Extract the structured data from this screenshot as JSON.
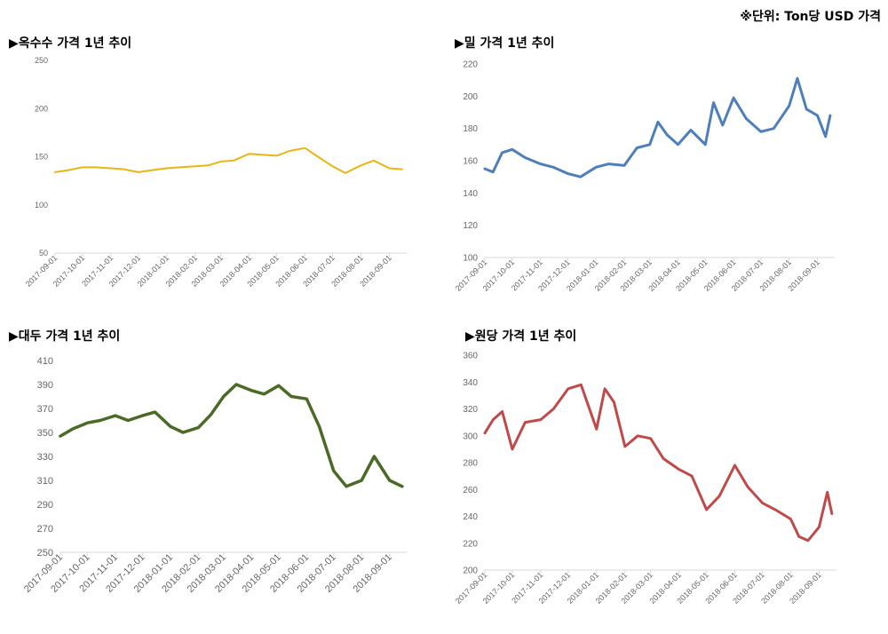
{
  "unit_note": "※단위: Ton당 USD 가격",
  "chart_data": [
    {
      "type": "line",
      "title": "▶옥수수 가격 1년 추이",
      "color": "#e8b612",
      "ylim": [
        50,
        250
      ],
      "yticks": [
        "50",
        "100",
        "150",
        "200",
        "250"
      ],
      "xticks": [
        "2017-09-01",
        "2017-10-01",
        "2017-11-01",
        "2017-12-01",
        "2018-01-01",
        "2018-02-01",
        "2018-03-01",
        "2018-04-01",
        "2018-05-01",
        "2018-06-01",
        "2018-07-01",
        "2018-08-01",
        "2018-09-01"
      ],
      "series": [
        {
          "x": [
            "2017-09-01",
            "2017-09-15",
            "2017-10-01",
            "2017-10-15",
            "2017-11-01",
            "2017-11-15",
            "2017-12-01",
            "2017-12-15",
            "2018-01-01",
            "2018-01-15",
            "2018-02-01",
            "2018-02-15",
            "2018-03-01",
            "2018-03-15",
            "2018-04-01",
            "2018-04-15",
            "2018-05-01",
            "2018-05-15",
            "2018-06-01",
            "2018-06-15",
            "2018-07-01",
            "2018-07-15",
            "2018-08-01",
            "2018-08-15",
            "2018-09-01",
            "2018-09-15"
          ],
          "values": [
            134,
            136,
            139,
            139,
            138,
            137,
            134,
            136,
            138,
            139,
            140,
            141,
            145,
            146,
            153,
            152,
            151,
            156,
            159,
            150,
            140,
            133,
            141,
            146,
            138,
            137
          ]
        }
      ]
    },
    {
      "type": "line",
      "title": "▶밀 가격 1년 추이",
      "color": "#4e7fba",
      "ylim": [
        100,
        220
      ],
      "yticks": [
        "100",
        "120",
        "140",
        "160",
        "180",
        "200",
        "220"
      ],
      "xticks": [
        "2017-09-01",
        "2017-10-01",
        "2017-11-01",
        "2017-12-01",
        "2018-01-01",
        "2018-02-01",
        "2018-03-01",
        "2018-04-01",
        "2018-05-01",
        "2018-06-01",
        "2018-07-01",
        "2018-08-01",
        "2018-09-01"
      ],
      "series": [
        {
          "x": [
            "2017-09-01",
            "2017-09-10",
            "2017-09-20",
            "2017-10-01",
            "2017-10-15",
            "2017-11-01",
            "2017-11-15",
            "2017-12-01",
            "2017-12-15",
            "2018-01-01",
            "2018-01-15",
            "2018-02-01",
            "2018-02-15",
            "2018-03-01",
            "2018-03-10",
            "2018-03-20",
            "2018-04-01",
            "2018-04-15",
            "2018-05-01",
            "2018-05-10",
            "2018-05-20",
            "2018-06-01",
            "2018-06-15",
            "2018-07-01",
            "2018-07-15",
            "2018-08-01",
            "2018-08-10",
            "2018-08-20",
            "2018-09-01",
            "2018-09-10",
            "2018-09-15"
          ],
          "values": [
            155,
            153,
            165,
            167,
            162,
            158,
            156,
            152,
            150,
            156,
            158,
            157,
            168,
            170,
            184,
            176,
            170,
            179,
            170,
            196,
            182,
            199,
            186,
            178,
            180,
            194,
            211,
            192,
            188,
            175,
            188
          ]
        }
      ]
    },
    {
      "type": "line",
      "title": "▶대두 가격 1년 추이",
      "color": "#4b6a26",
      "ylim": [
        250,
        410
      ],
      "yticks": [
        "250",
        "270",
        "290",
        "310",
        "330",
        "350",
        "370",
        "390",
        "410"
      ],
      "xticks": [
        "2017-09-01",
        "2017-10-01",
        "2017-11-01",
        "2017-12-01",
        "2018-01-01",
        "2018-02-01",
        "2018-03-01",
        "2018-04-01",
        "2018-05-01",
        "2018-06-01",
        "2018-07-01",
        "2018-08-01",
        "2018-09-01"
      ],
      "series": [
        {
          "x": [
            "2017-09-01",
            "2017-09-15",
            "2017-10-01",
            "2017-10-15",
            "2017-11-01",
            "2017-11-15",
            "2017-12-01",
            "2017-12-15",
            "2018-01-01",
            "2018-01-15",
            "2018-02-01",
            "2018-02-15",
            "2018-03-01",
            "2018-03-15",
            "2018-04-01",
            "2018-04-15",
            "2018-05-01",
            "2018-05-15",
            "2018-06-01",
            "2018-06-15",
            "2018-07-01",
            "2018-07-15",
            "2018-08-01",
            "2018-08-15",
            "2018-09-01",
            "2018-09-15"
          ],
          "values": [
            347,
            353,
            358,
            360,
            364,
            360,
            364,
            367,
            355,
            350,
            354,
            365,
            380,
            390,
            385,
            382,
            389,
            380,
            378,
            355,
            318,
            305,
            310,
            330,
            310,
            305
          ]
        }
      ]
    },
    {
      "type": "line",
      "title": "▶원당 가격 1년 추이",
      "color": "#c04a4a",
      "ylim": [
        200,
        360
      ],
      "yticks": [
        "200",
        "220",
        "240",
        "260",
        "280",
        "300",
        "320",
        "340",
        "360"
      ],
      "xticks": [
        "2017-09-01",
        "2017-10-01",
        "2017-11-01",
        "2017-12-01",
        "2018-01-01",
        "2018-02-01",
        "2018-03-01",
        "2018-04-01",
        "2018-05-01",
        "2018-06-01",
        "2018-07-01",
        "2018-08-01",
        "2018-09-01"
      ],
      "series": [
        {
          "x": [
            "2017-09-01",
            "2017-09-10",
            "2017-09-20",
            "2017-10-01",
            "2017-10-15",
            "2017-11-01",
            "2017-11-15",
            "2017-12-01",
            "2017-12-15",
            "2018-01-01",
            "2018-01-10",
            "2018-01-20",
            "2018-02-01",
            "2018-02-15",
            "2018-03-01",
            "2018-03-15",
            "2018-04-01",
            "2018-04-15",
            "2018-05-01",
            "2018-05-15",
            "2018-06-01",
            "2018-06-15",
            "2018-07-01",
            "2018-07-15",
            "2018-08-01",
            "2018-08-10",
            "2018-08-20",
            "2018-09-01",
            "2018-09-10",
            "2018-09-15"
          ],
          "values": [
            302,
            312,
            318,
            290,
            310,
            312,
            320,
            335,
            338,
            305,
            335,
            325,
            292,
            300,
            298,
            283,
            275,
            270,
            245,
            255,
            278,
            262,
            250,
            245,
            238,
            225,
            222,
            232,
            258,
            242
          ]
        }
      ]
    }
  ]
}
